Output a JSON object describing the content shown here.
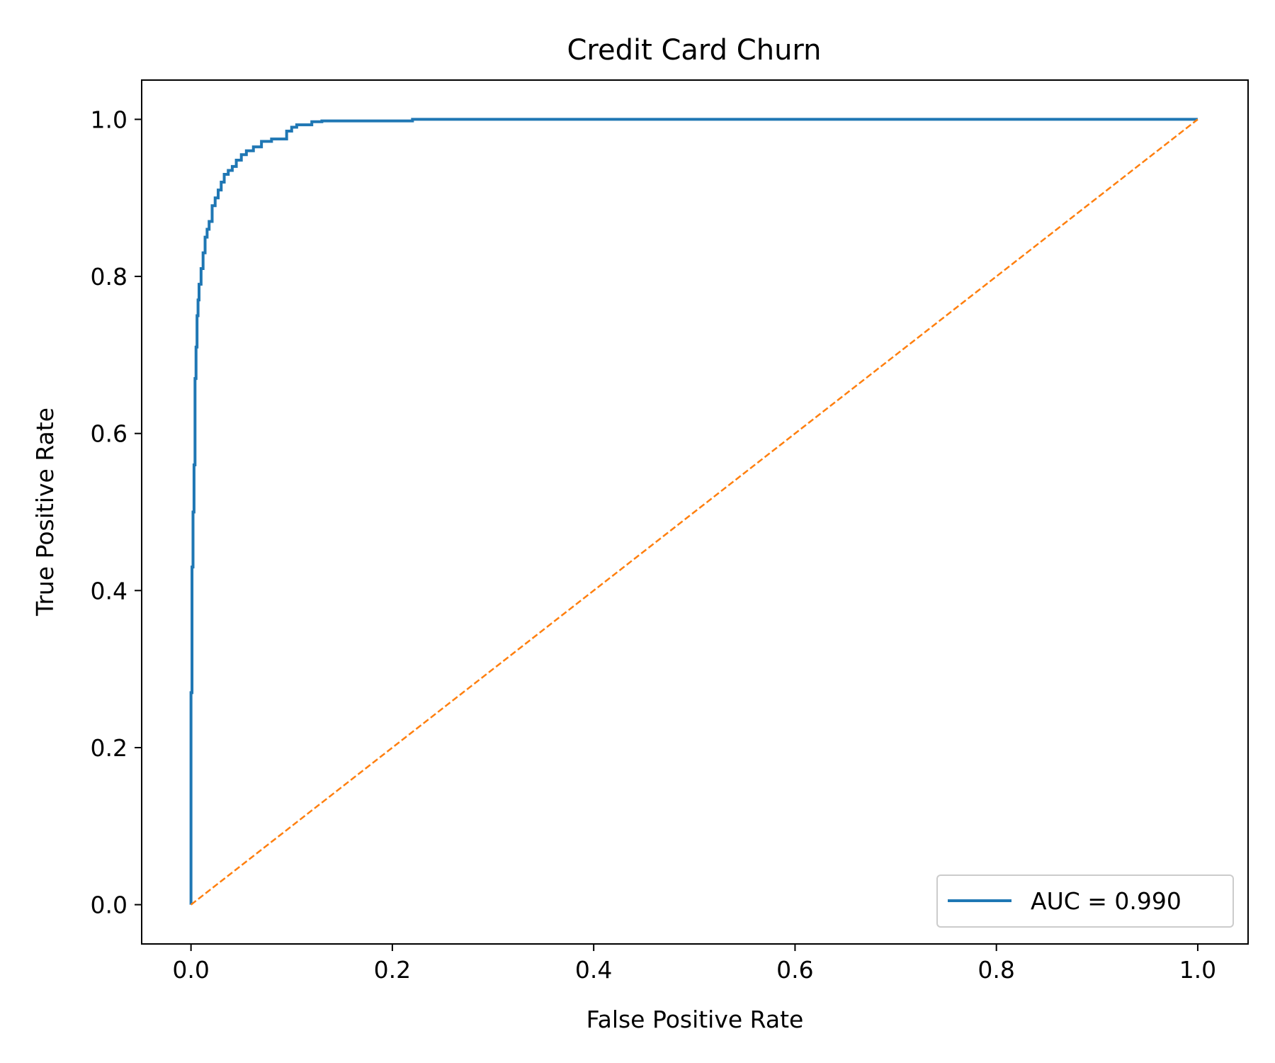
{
  "chart_data": {
    "type": "line",
    "title": "Credit Card Churn",
    "xlabel": "False Positive Rate",
    "ylabel": "True Positive Rate",
    "xlim": [
      -0.049,
      1.05
    ],
    "ylim": [
      -0.05,
      1.05
    ],
    "x_ticks": [
      "0.0",
      "0.2",
      "0.4",
      "0.6",
      "0.8",
      "1.0"
    ],
    "y_ticks": [
      "0.0",
      "0.2",
      "0.4",
      "0.6",
      "0.8",
      "1.0"
    ],
    "grid": false,
    "legend_position": "lower-right",
    "series": [
      {
        "name": "AUC = 0.990",
        "color": "#1f77b4",
        "style": "solid",
        "x": [
          0.0,
          0.0,
          0.001,
          0.001,
          0.002,
          0.002,
          0.003,
          0.003,
          0.004,
          0.004,
          0.005,
          0.005,
          0.006,
          0.006,
          0.007,
          0.007,
          0.008,
          0.008,
          0.01,
          0.01,
          0.012,
          0.012,
          0.014,
          0.014,
          0.016,
          0.016,
          0.018,
          0.018,
          0.021,
          0.021,
          0.024,
          0.024,
          0.027,
          0.027,
          0.03,
          0.03,
          0.033,
          0.033,
          0.037,
          0.037,
          0.041,
          0.041,
          0.045,
          0.045,
          0.05,
          0.05,
          0.055,
          0.055,
          0.062,
          0.062,
          0.07,
          0.07,
          0.08,
          0.08,
          0.095,
          0.095,
          0.1,
          0.1,
          0.105,
          0.105,
          0.12,
          0.12,
          0.13,
          0.13,
          0.22,
          0.22,
          1.0
        ],
        "y": [
          0.0,
          0.27,
          0.27,
          0.43,
          0.43,
          0.5,
          0.5,
          0.56,
          0.56,
          0.67,
          0.67,
          0.71,
          0.71,
          0.75,
          0.75,
          0.77,
          0.77,
          0.79,
          0.79,
          0.81,
          0.81,
          0.83,
          0.83,
          0.85,
          0.85,
          0.86,
          0.86,
          0.87,
          0.87,
          0.89,
          0.89,
          0.9,
          0.9,
          0.91,
          0.91,
          0.92,
          0.92,
          0.93,
          0.93,
          0.935,
          0.935,
          0.94,
          0.94,
          0.948,
          0.948,
          0.955,
          0.955,
          0.96,
          0.96,
          0.965,
          0.965,
          0.972,
          0.972,
          0.975,
          0.975,
          0.985,
          0.985,
          0.99,
          0.99,
          0.993,
          0.993,
          0.997,
          0.997,
          0.998,
          0.998,
          1.0,
          1.0
        ]
      },
      {
        "name": "",
        "color": "#ff7f0e",
        "style": "dashed",
        "x": [
          0.0,
          1.0
        ],
        "y": [
          0.0,
          1.0
        ]
      }
    ]
  }
}
